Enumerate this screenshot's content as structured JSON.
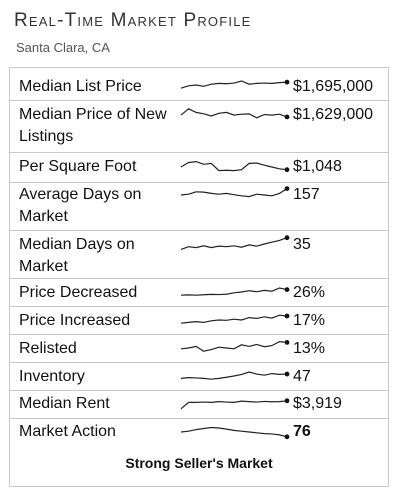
{
  "header": {
    "title": "Real-Time Market Profile",
    "location": "Santa Clara, CA"
  },
  "rows": [
    {
      "label": "Median List Price",
      "value": "$1,695,000"
    },
    {
      "label": "Median Price of New Listings",
      "value": "$1,629,000"
    },
    {
      "label": "Per Square Foot",
      "value": "$1,048"
    },
    {
      "label": "Average Days on Market",
      "value": "157"
    },
    {
      "label": "Median Days on Market",
      "value": "35"
    },
    {
      "label": "Price Decreased",
      "value": "26%"
    },
    {
      "label": "Price Increased",
      "value": "17%"
    },
    {
      "label": "Relisted",
      "value": "13%"
    },
    {
      "label": "Inventory",
      "value": "47"
    },
    {
      "label": "Median Rent",
      "value": "$3,919"
    },
    {
      "label": "Market Action",
      "value": "76"
    }
  ],
  "footer": "Strong Seller's Market",
  "sparklines": [
    [
      0.3,
      0.45,
      0.5,
      0.42,
      0.55,
      0.6,
      0.58,
      0.62,
      0.75,
      0.55,
      0.6,
      0.62,
      0.6,
      0.65,
      0.68
    ],
    [
      0.55,
      0.9,
      0.7,
      0.62,
      0.5,
      0.65,
      0.7,
      0.55,
      0.6,
      0.62,
      0.4,
      0.58,
      0.55,
      0.6,
      0.45
    ],
    [
      0.5,
      0.75,
      0.8,
      0.65,
      0.7,
      0.3,
      0.32,
      0.3,
      0.35,
      0.7,
      0.72,
      0.6,
      0.5,
      0.4,
      0.35
    ],
    [
      0.5,
      0.55,
      0.7,
      0.68,
      0.6,
      0.55,
      0.6,
      0.52,
      0.45,
      0.4,
      0.55,
      0.5,
      0.45,
      0.6,
      0.9
    ],
    [
      0.2,
      0.35,
      0.3,
      0.4,
      0.3,
      0.38,
      0.35,
      0.4,
      0.32,
      0.45,
      0.38,
      0.5,
      0.6,
      0.7,
      0.85
    ],
    [
      0.3,
      0.32,
      0.3,
      0.33,
      0.35,
      0.34,
      0.36,
      0.45,
      0.5,
      0.58,
      0.52,
      0.6,
      0.55,
      0.75,
      0.65
    ],
    [
      0.3,
      0.35,
      0.4,
      0.35,
      0.45,
      0.5,
      0.48,
      0.55,
      0.5,
      0.65,
      0.6,
      0.7,
      0.62,
      0.8,
      0.75
    ],
    [
      0.45,
      0.5,
      0.6,
      0.3,
      0.4,
      0.55,
      0.5,
      0.45,
      0.7,
      0.6,
      0.72,
      0.58,
      0.65,
      0.9,
      0.85
    ],
    [
      0.35,
      0.4,
      0.38,
      0.35,
      0.3,
      0.35,
      0.42,
      0.5,
      0.6,
      0.75,
      0.62,
      0.55,
      0.65,
      0.6,
      0.62
    ],
    [
      0.2,
      0.6,
      0.6,
      0.62,
      0.6,
      0.65,
      0.62,
      0.6,
      0.68,
      0.65,
      0.62,
      0.66,
      0.64,
      0.65,
      0.7
    ],
    [
      0.5,
      0.55,
      0.65,
      0.72,
      0.78,
      0.75,
      0.68,
      0.6,
      0.55,
      0.5,
      0.45,
      0.4,
      0.38,
      0.32,
      0.2
    ]
  ]
}
